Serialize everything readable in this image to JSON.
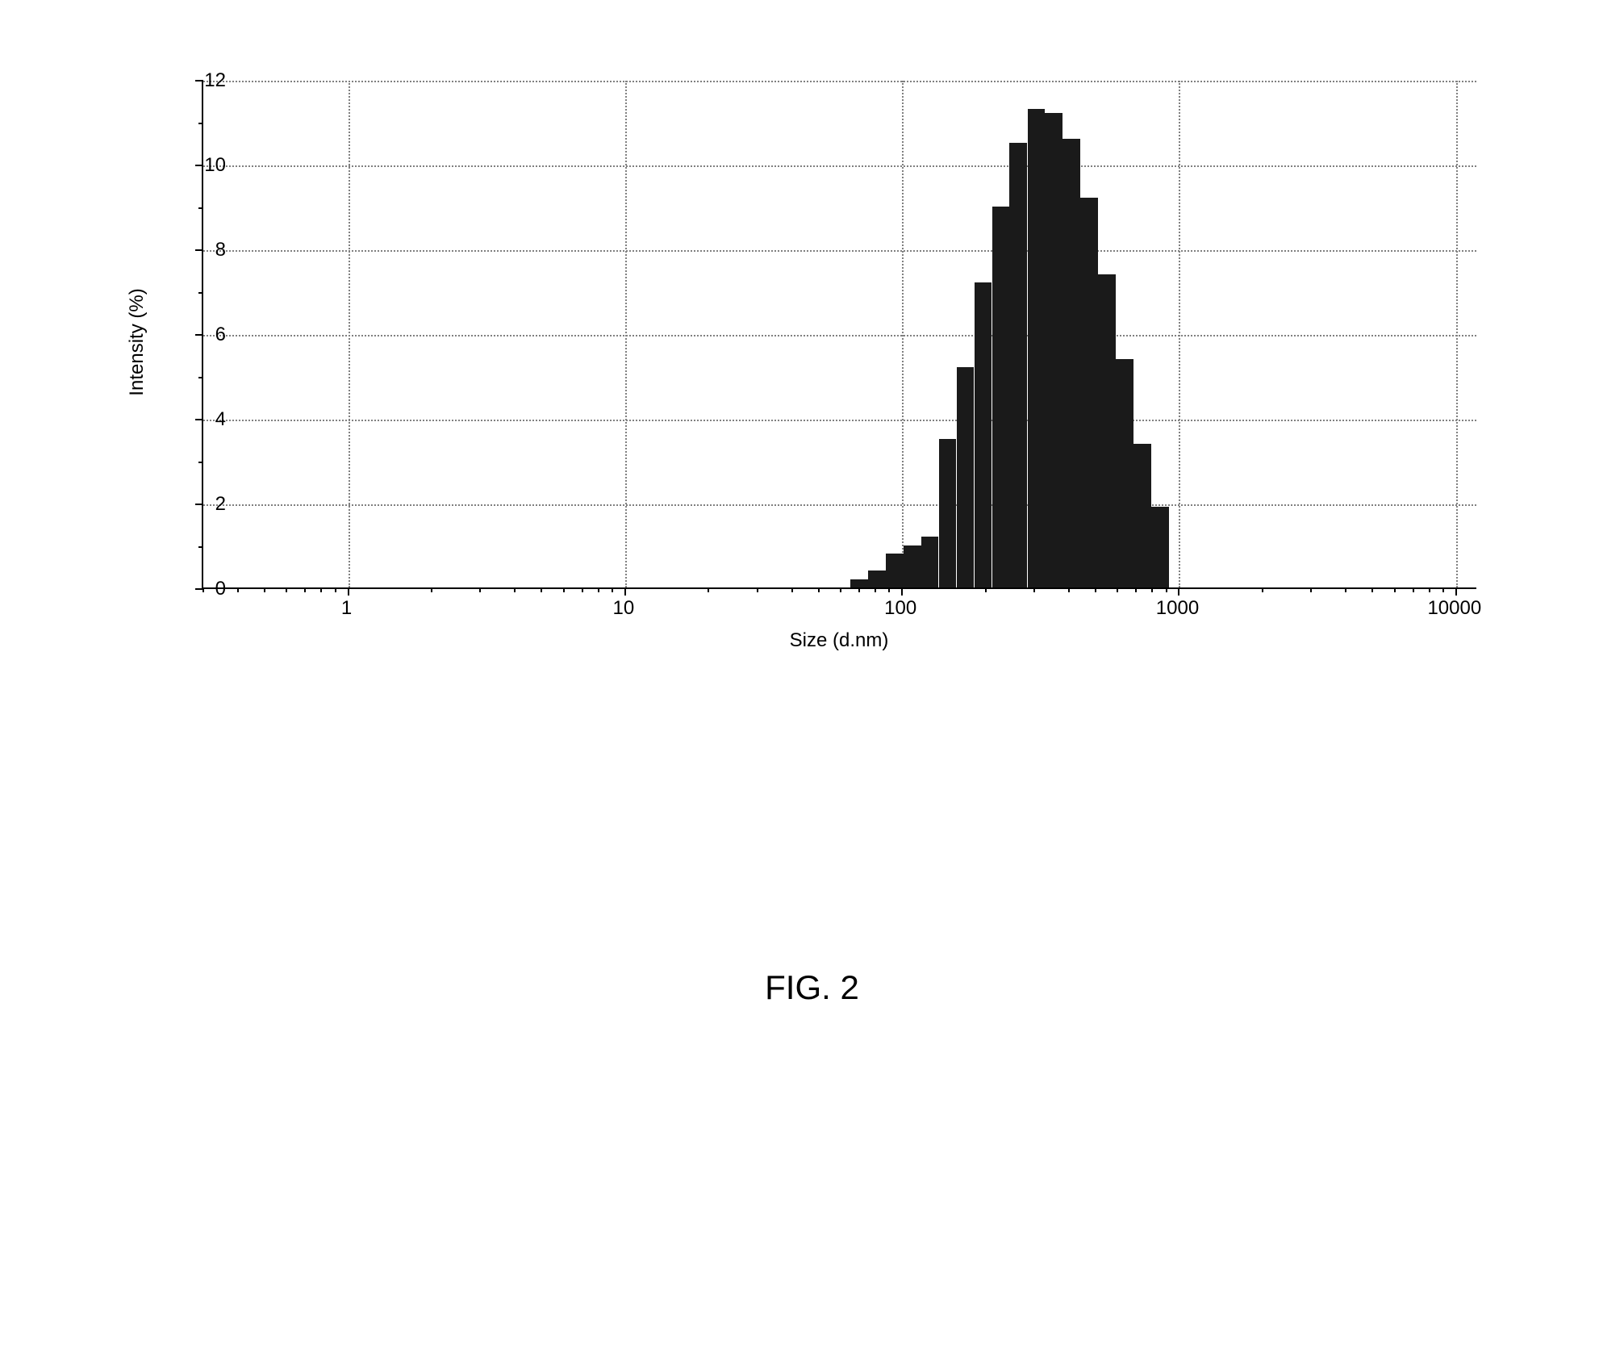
{
  "chart": {
    "type": "histogram",
    "xlabel": "Size (d.nm)",
    "ylabel": "Intensity (%)",
    "x_scale": "log",
    "xlim_min": 0.3,
    "xlim_max": 12000,
    "ylim": [
      0,
      12
    ],
    "ytick_step": 2,
    "yminor_step": 1,
    "x_major_ticks": [
      1,
      10,
      100,
      1000,
      10000
    ],
    "x_tick_labels": [
      "1",
      "10",
      "100",
      "1000",
      "10000"
    ],
    "y_tick_labels": [
      "0",
      "2",
      "4",
      "6",
      "8",
      "10",
      "12"
    ],
    "grid": true,
    "grid_color": "#808080",
    "grid_style": "dotted",
    "background_color": "#ffffff",
    "bar_color": "#1a1a1a",
    "axis_color": "#000000",
    "label_fontsize": 24,
    "series": {
      "bin_centers_nm": [
        70,
        81,
        94,
        109,
        126,
        146,
        169,
        196,
        227,
        263,
        305,
        353,
        409,
        474,
        549,
        636,
        737,
        854
      ],
      "intensity_pct": [
        0.2,
        0.4,
        0.8,
        1.0,
        1.2,
        3.5,
        5.2,
        7.2,
        9.0,
        10.5,
        11.3,
        11.2,
        10.6,
        9.2,
        7.4,
        5.4,
        3.4,
        1.9
      ]
    }
  },
  "figure_label": "FIG. 2"
}
